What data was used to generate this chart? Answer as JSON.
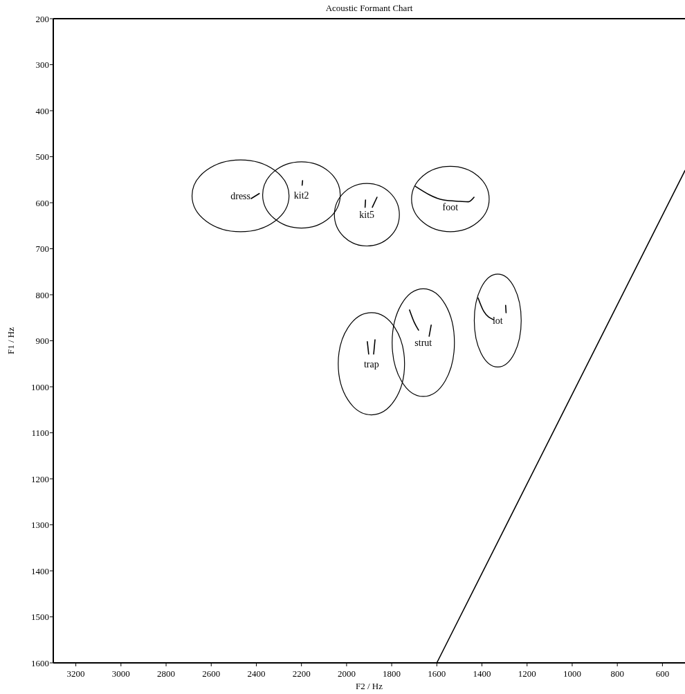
{
  "chart_data": {
    "type": "line",
    "title": "Acoustic Formant Chart",
    "xlabel": "F2 / Hz",
    "ylabel": "F1 / Hz",
    "xlim": [
      3300,
      500
    ],
    "ylim": [
      1600,
      200
    ],
    "xticks": [
      3200,
      3000,
      2800,
      2600,
      2400,
      2200,
      2000,
      1800,
      1600,
      1400,
      1200,
      1000,
      800,
      600
    ],
    "yticks": [
      200,
      300,
      400,
      500,
      600,
      700,
      800,
      900,
      1000,
      1100,
      1200,
      1300,
      1400,
      1500,
      1600
    ],
    "grid": false,
    "marker": "none",
    "line_style": "solid",
    "series": [
      {
        "color": "#000000",
        "x": [
          2423,
          2387
        ],
        "values": [
          591,
          580
        ]
      },
      {
        "color": "#000000",
        "x": [
          2197,
          2195
        ],
        "values": [
          562,
          552
        ]
      },
      {
        "color": "#000000",
        "x": [
          1918,
          1916
        ],
        "values": [
          610,
          594
        ]
      },
      {
        "color": "#000000",
        "x": [
          1886,
          1865
        ],
        "values": [
          610,
          588
        ]
      },
      {
        "color": "#000000",
        "x": [
          1435,
          1460,
          1497,
          1570,
          1696
        ],
        "values": [
          588,
          598,
          597,
          594,
          564
        ]
      },
      {
        "color": "#000000",
        "x": [
          1908,
          1902
        ],
        "values": [
          902,
          929
        ]
      },
      {
        "color": "#000000",
        "x": [
          1880,
          1874
        ],
        "values": [
          929,
          898
        ]
      },
      {
        "color": "#000000",
        "x": [
          1625,
          1634
        ],
        "values": [
          866,
          890
        ]
      },
      {
        "color": "#000000",
        "x": [
          1681,
          1700,
          1721
        ],
        "values": [
          877,
          860,
          833
        ]
      },
      {
        "color": "#000000",
        "x": [
          1295,
          1293
        ],
        "values": [
          823,
          839
        ]
      },
      {
        "color": "#000000",
        "x": [
          1349,
          1392,
          1417
        ],
        "values": [
          854,
          836,
          807
        ]
      },
      {
        "color": "#000000",
        "x": [
          1600,
          500
        ],
        "values": [
          1600,
          530
        ]
      }
    ],
    "annotations": [
      "dress",
      "kit2",
      "kit5",
      "foot",
      "trap",
      "strut",
      "lot"
    ]
  }
}
